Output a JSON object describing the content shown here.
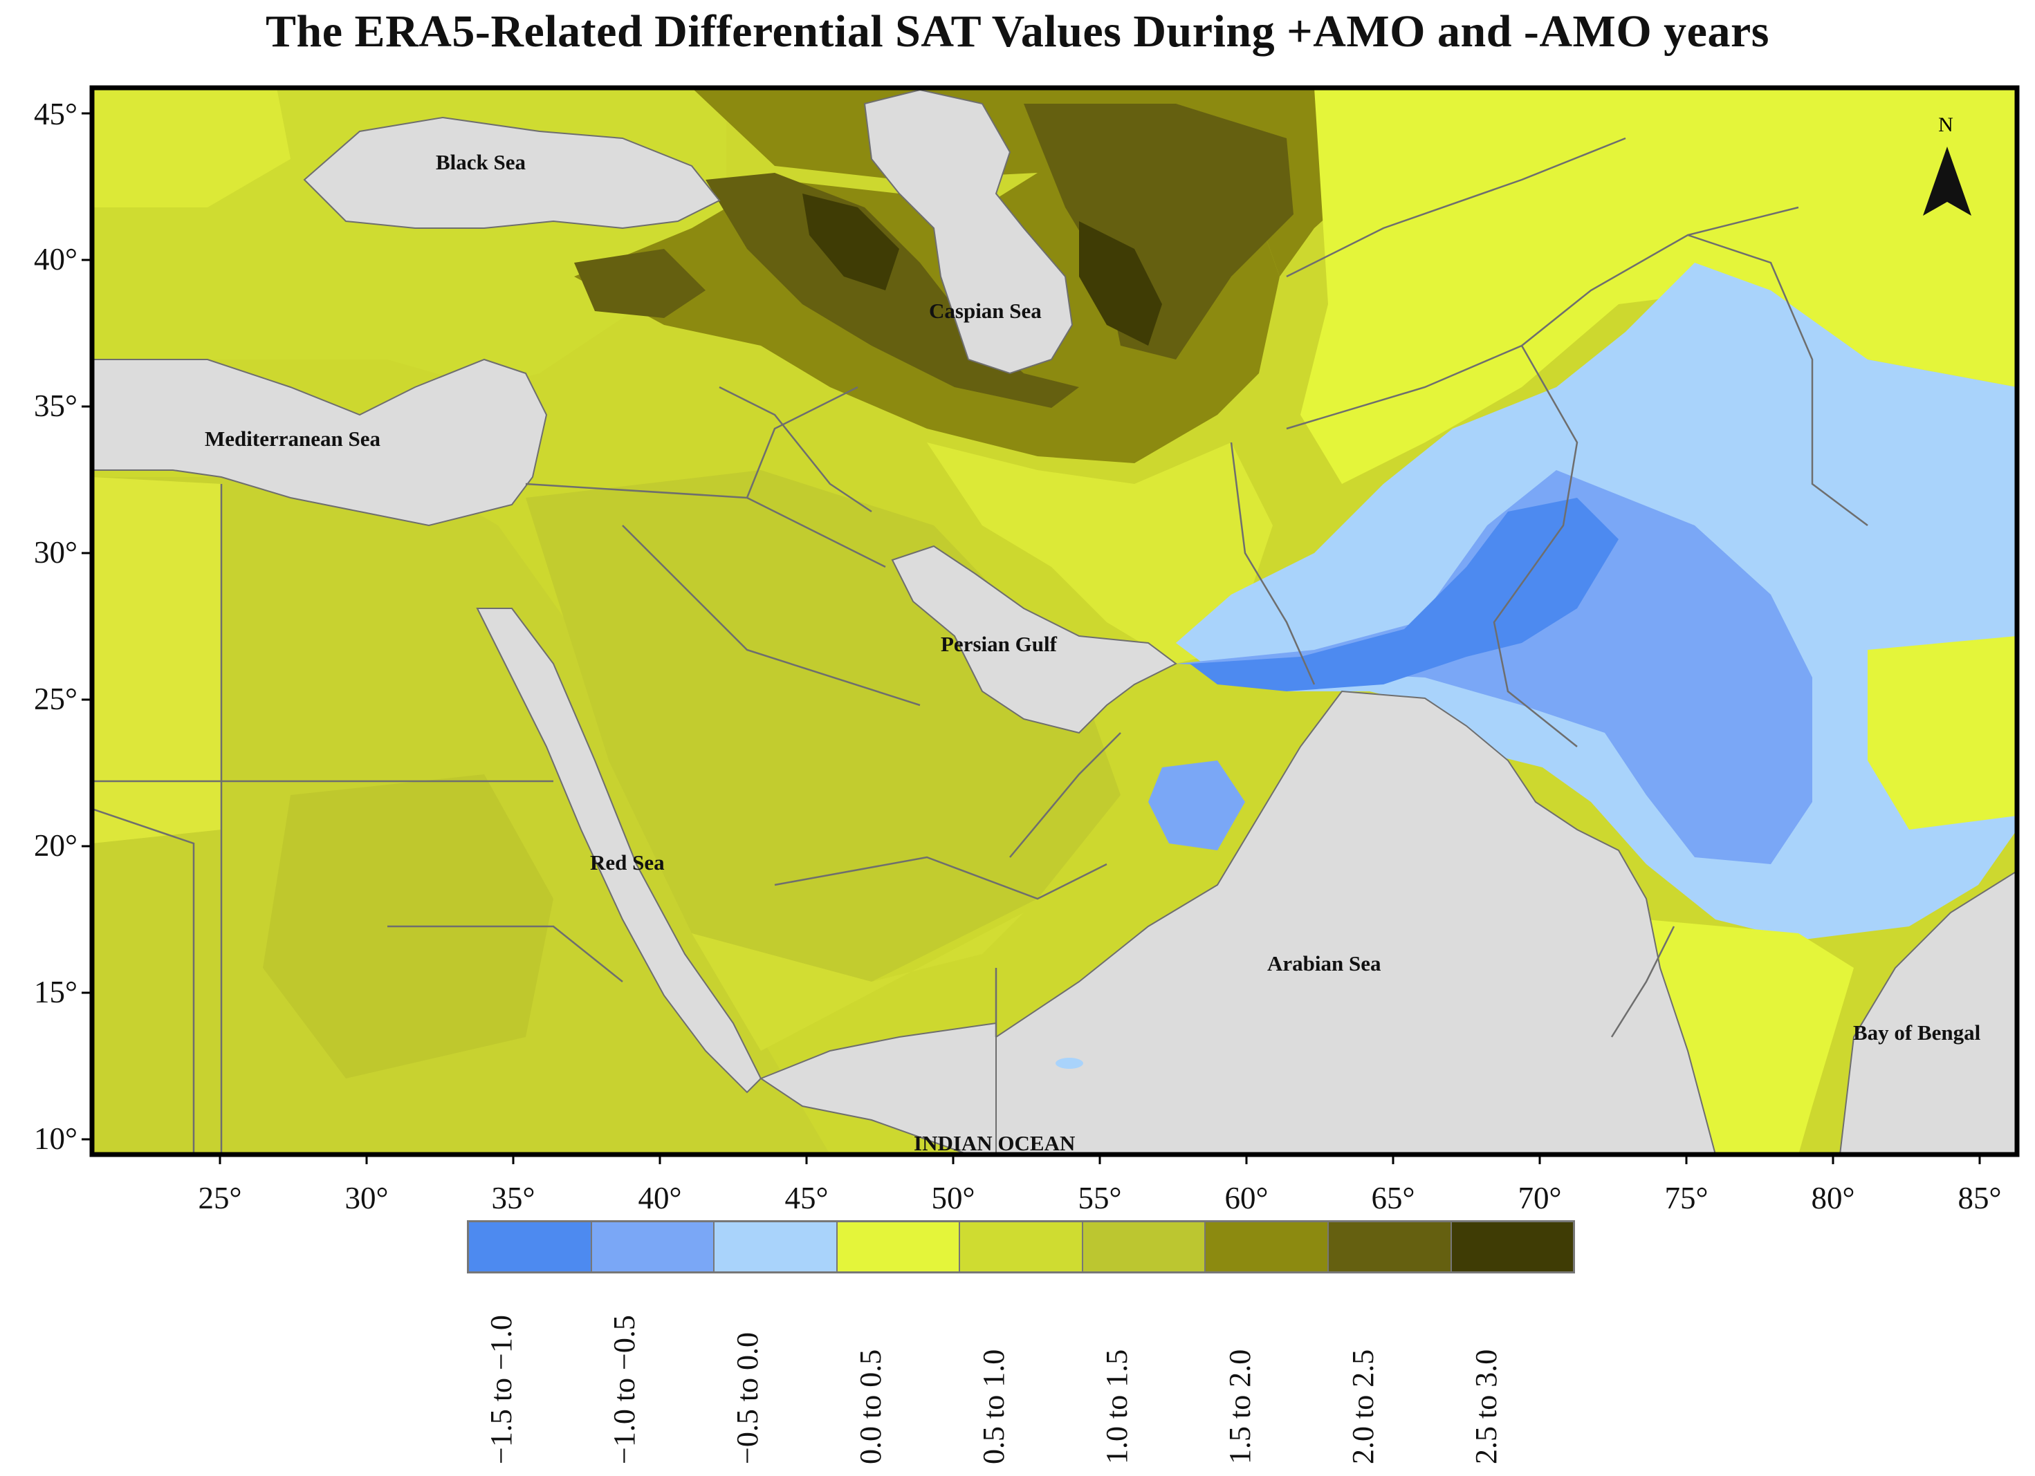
{
  "title": "The ERA5-Related Differential SAT Values During +AMO and -AMO years",
  "map": {
    "region": "Middle East / West Asia",
    "north_label": "N",
    "water_color": "#dcdcdc",
    "border_color": "#6e6e6e",
    "labels": {
      "black_sea": "Black Sea",
      "caspian_sea": "Caspian Sea",
      "mediterranean_sea": "Mediterranean Sea",
      "persian_gulf": "Persian Gulf",
      "red_sea": "Red Sea",
      "arabian_sea": "Arabian Sea",
      "bay_of_bengal": "Bay of Bengal",
      "indian_ocean": "INDIAN OCEAN"
    },
    "lat_ticks": [
      "45°",
      "40°",
      "35°",
      "30°",
      "25°",
      "20°",
      "15°",
      "10°"
    ],
    "lon_ticks": [
      "25°",
      "30°",
      "35°",
      "40°",
      "45°",
      "50°",
      "55°",
      "60°",
      "65°",
      "70°",
      "75°",
      "80°",
      "85°"
    ],
    "extent": {
      "lon_min": 21,
      "lon_max": 86,
      "lat_min": 9.5,
      "lat_max": 46
    }
  },
  "legend": [
    {
      "label": "−1.5 to −1.0",
      "color": "#4d8af0"
    },
    {
      "label": "−1.0 to −0.5",
      "color": "#7aa7f6"
    },
    {
      "label": "−0.5 to 0.0",
      "color": "#a9d3fb"
    },
    {
      "label": "0.0 to  0.5",
      "color": "#e4f53a"
    },
    {
      "label": "0.5 to 1.0",
      "color": "#cfdc31"
    },
    {
      "label": "1.0 to 1.5",
      "color": "#bcc630"
    },
    {
      "label": "1.5 to 2.0",
      "color": "#8c8a10"
    },
    {
      "label": "2.0 to 2.5",
      "color": "#656010"
    },
    {
      "label": "2.5 to 3.0",
      "color": "#3f3c05"
    }
  ]
}
